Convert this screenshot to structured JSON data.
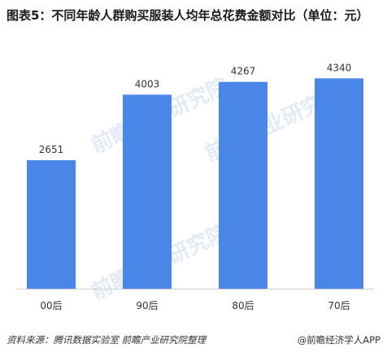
{
  "title": "图表5：不同年龄人群购买服装人均年总花费金额对比（单位：元）",
  "source": "资料来源：腾讯数据实验室  前瞻产业研究院整理",
  "brand": "@前瞻经济学人APP",
  "watermark": "前瞻产业研究院",
  "colors": {
    "bar": "#4a86e8",
    "grid": "#e6e6e6",
    "axis": "#cfcfcf",
    "watermark": "#dde6f3"
  },
  "chart_data": {
    "type": "bar",
    "categories": [
      "00后",
      "90后",
      "80后",
      "70后"
    ],
    "values": [
      2651,
      4003,
      4267,
      4340
    ],
    "data_labels": [
      "2651",
      "4003",
      "4267",
      "4340"
    ],
    "ylim": [
      0,
      5000
    ],
    "grid": false,
    "legend": "none"
  }
}
